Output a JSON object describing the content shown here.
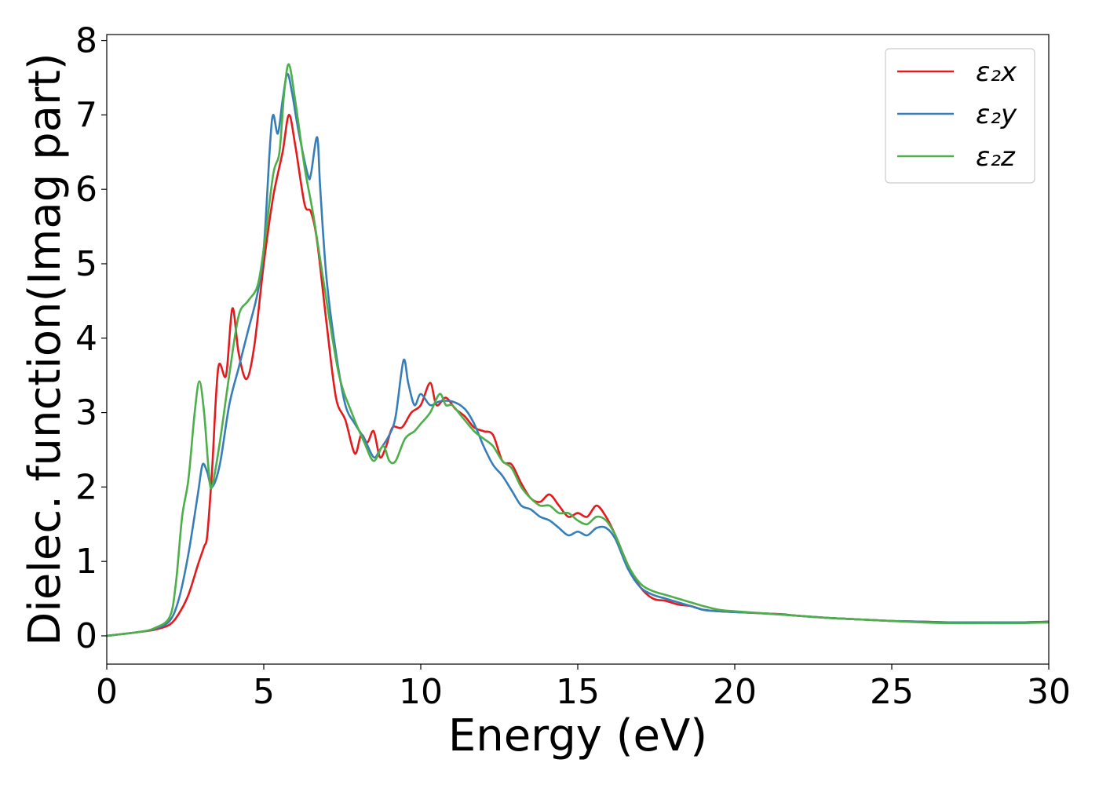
{
  "chart_data": {
    "type": "line",
    "xlabel": "Energy (eV)",
    "ylabel": "Dielec. function(Imag part)",
    "xlim": [
      0,
      30
    ],
    "ylim": [
      -0.38,
      8.08
    ],
    "xticks": [
      "0",
      "5",
      "10",
      "15",
      "20",
      "25",
      "30"
    ],
    "yticks": [
      "0",
      "1",
      "2",
      "3",
      "4",
      "5",
      "6",
      "7",
      "8"
    ],
    "grid": false,
    "legend_position": "top-right",
    "series": [
      {
        "name": "ε₂x",
        "color": "#e41a1c",
        "x": [
          0,
          1,
          1.5,
          2,
          2.3,
          2.6,
          2.9,
          3.1,
          3.2,
          3.35,
          3.55,
          3.8,
          4.0,
          4.2,
          4.45,
          4.7,
          5.0,
          5.3,
          5.6,
          5.8,
          6.0,
          6.3,
          6.5,
          6.7,
          7.0,
          7.3,
          7.6,
          7.9,
          8.1,
          8.3,
          8.5,
          8.7,
          8.9,
          9.1,
          9.4,
          9.7,
          10.0,
          10.3,
          10.5,
          10.8,
          11.1,
          11.4,
          11.7,
          12.0,
          12.3,
          12.6,
          12.9,
          13.2,
          13.5,
          13.8,
          14.1,
          14.4,
          14.7,
          15.0,
          15.3,
          15.6,
          15.9,
          16.2,
          16.6,
          17.0,
          17.4,
          17.8,
          18.2,
          18.6,
          19.0,
          19.5,
          20,
          20.5,
          21,
          21.5,
          22,
          23,
          24,
          25,
          26,
          27,
          28,
          29,
          30
        ],
        "values": [
          0,
          0.05,
          0.08,
          0.15,
          0.3,
          0.55,
          0.95,
          1.2,
          1.35,
          2.2,
          3.6,
          3.5,
          4.4,
          3.8,
          3.45,
          3.9,
          5.0,
          5.9,
          6.5,
          7.0,
          6.6,
          5.8,
          5.7,
          5.3,
          4.2,
          3.2,
          2.9,
          2.45,
          2.7,
          2.6,
          2.75,
          2.4,
          2.55,
          2.8,
          2.8,
          3.0,
          3.1,
          3.4,
          3.1,
          3.2,
          3.05,
          2.95,
          2.8,
          2.75,
          2.7,
          2.35,
          2.3,
          2.05,
          1.85,
          1.8,
          1.9,
          1.75,
          1.6,
          1.65,
          1.6,
          1.75,
          1.6,
          1.35,
          0.95,
          0.65,
          0.5,
          0.47,
          0.42,
          0.4,
          0.35,
          0.33,
          0.32,
          0.31,
          0.3,
          0.29,
          0.27,
          0.24,
          0.22,
          0.2,
          0.19,
          0.18,
          0.18,
          0.18,
          0.19
        ]
      },
      {
        "name": "ε₂y",
        "color": "#377eb8",
        "x": [
          0,
          1,
          1.5,
          2,
          2.3,
          2.6,
          2.9,
          3.05,
          3.2,
          3.35,
          3.6,
          3.9,
          4.2,
          4.5,
          4.8,
          5.0,
          5.2,
          5.3,
          5.45,
          5.6,
          5.75,
          5.9,
          6.1,
          6.4,
          6.5,
          6.7,
          6.8,
          7.0,
          7.3,
          7.6,
          7.9,
          8.2,
          8.5,
          8.7,
          9.0,
          9.2,
          9.45,
          9.6,
          9.8,
          10.0,
          10.3,
          10.6,
          11.0,
          11.4,
          11.7,
          12.0,
          12.3,
          12.6,
          12.9,
          13.2,
          13.5,
          13.8,
          14.1,
          14.4,
          14.7,
          15.0,
          15.3,
          15.6,
          15.9,
          16.2,
          16.6,
          17.0,
          17.4,
          17.8,
          18.2,
          18.6,
          19.0,
          19.5,
          20,
          21,
          22,
          23,
          24,
          25,
          26,
          27,
          28,
          29,
          30
        ],
        "values": [
          0,
          0.05,
          0.09,
          0.2,
          0.5,
          1.1,
          1.9,
          2.3,
          2.2,
          2.0,
          2.3,
          3.1,
          3.6,
          4.1,
          4.6,
          5.2,
          6.6,
          7.0,
          6.75,
          7.2,
          7.55,
          7.3,
          6.8,
          6.2,
          6.2,
          6.7,
          6.0,
          4.8,
          3.8,
          3.1,
          2.85,
          2.65,
          2.4,
          2.5,
          2.7,
          2.95,
          3.7,
          3.4,
          3.1,
          3.25,
          3.1,
          3.15,
          3.15,
          3.05,
          2.85,
          2.55,
          2.3,
          2.15,
          1.95,
          1.75,
          1.7,
          1.6,
          1.55,
          1.45,
          1.35,
          1.4,
          1.35,
          1.45,
          1.45,
          1.3,
          0.9,
          0.65,
          0.55,
          0.5,
          0.45,
          0.4,
          0.35,
          0.33,
          0.32,
          0.3,
          0.27,
          0.24,
          0.22,
          0.2,
          0.19,
          0.18,
          0.18,
          0.18,
          0.19
        ]
      },
      {
        "name": "ε₂z",
        "color": "#4daf4a",
        "x": [
          0,
          1,
          1.5,
          2,
          2.2,
          2.4,
          2.6,
          2.8,
          2.95,
          3.1,
          3.25,
          3.35,
          3.6,
          3.9,
          4.2,
          4.5,
          4.8,
          5.0,
          5.3,
          5.5,
          5.65,
          5.8,
          6.0,
          6.3,
          6.6,
          7.0,
          7.4,
          7.8,
          8.2,
          8.5,
          8.8,
          9.0,
          9.2,
          9.5,
          9.8,
          10.0,
          10.3,
          10.6,
          10.8,
          11.0,
          11.3,
          11.7,
          12.0,
          12.3,
          12.6,
          12.9,
          13.2,
          13.5,
          13.8,
          14.1,
          14.4,
          14.7,
          15.0,
          15.3,
          15.6,
          15.9,
          16.2,
          16.6,
          17.0,
          17.4,
          17.8,
          18.2,
          18.6,
          19.0,
          19.5,
          20,
          21,
          22,
          23,
          24,
          25,
          26,
          27,
          28,
          29,
          30
        ],
        "values": [
          0,
          0.05,
          0.1,
          0.25,
          0.7,
          1.6,
          2.1,
          3.0,
          3.42,
          3.0,
          2.2,
          2.0,
          2.6,
          3.5,
          4.3,
          4.5,
          4.7,
          5.2,
          6.2,
          6.5,
          7.3,
          7.68,
          7.2,
          6.3,
          5.6,
          4.5,
          3.5,
          3.0,
          2.6,
          2.35,
          2.55,
          2.35,
          2.35,
          2.65,
          2.75,
          2.85,
          3.0,
          3.25,
          3.1,
          3.1,
          2.95,
          2.75,
          2.65,
          2.55,
          2.35,
          2.25,
          2.0,
          1.85,
          1.75,
          1.75,
          1.65,
          1.65,
          1.55,
          1.5,
          1.6,
          1.55,
          1.35,
          0.95,
          0.7,
          0.6,
          0.55,
          0.5,
          0.45,
          0.4,
          0.35,
          0.33,
          0.3,
          0.27,
          0.24,
          0.22,
          0.2,
          0.18,
          0.17,
          0.17,
          0.17,
          0.18
        ]
      }
    ]
  }
}
